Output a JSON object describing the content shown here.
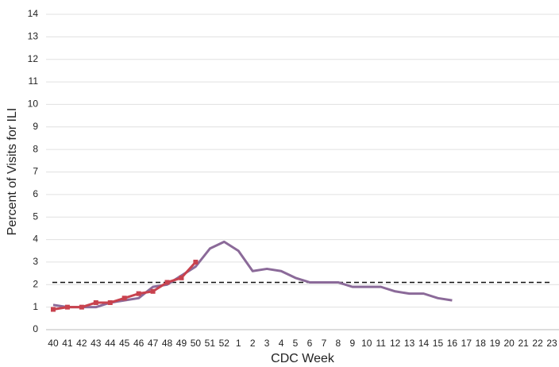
{
  "chart_data": {
    "type": "line",
    "x_label": "CDC Week",
    "y_label": "Percent of Visits for ILI",
    "categories": [
      "40",
      "41",
      "42",
      "43",
      "44",
      "45",
      "46",
      "47",
      "48",
      "49",
      "50",
      "51",
      "52",
      "1",
      "2",
      "3",
      "4",
      "5",
      "6",
      "7",
      "8",
      "9",
      "10",
      "11",
      "12",
      "13",
      "14",
      "15",
      "16",
      "17",
      "18",
      "19",
      "20",
      "21",
      "22",
      "23"
    ],
    "series": [
      {
        "color": "#8b6a99",
        "marker": false,
        "values": [
          1.1,
          1.0,
          1.0,
          1.0,
          1.2,
          1.3,
          1.4,
          1.9,
          2.0,
          2.4,
          2.8,
          3.6,
          3.9,
          3.5,
          2.6,
          2.7,
          2.6,
          2.3,
          2.1,
          2.1,
          2.1,
          1.9,
          1.9,
          1.9,
          1.7,
          1.6,
          1.6,
          1.4,
          1.3,
          null,
          null,
          null,
          null,
          null,
          null,
          null
        ]
      },
      {
        "color": "#c8424e",
        "marker": true,
        "values": [
          0.9,
          1.0,
          1.0,
          1.2,
          1.2,
          1.4,
          1.6,
          1.7,
          2.1,
          2.3,
          3.0,
          null,
          null,
          null,
          null,
          null,
          null,
          null,
          null,
          null,
          null,
          null,
          null,
          null,
          null,
          null,
          null,
          null,
          null,
          null,
          null,
          null,
          null,
          null,
          null,
          null
        ]
      }
    ],
    "baseline": 2.1,
    "ylim": [
      0,
      14
    ],
    "yticks": [
      0,
      1,
      2,
      3,
      4,
      5,
      6,
      7,
      8,
      9,
      10,
      11,
      12,
      13,
      14
    ],
    "grid": true
  }
}
